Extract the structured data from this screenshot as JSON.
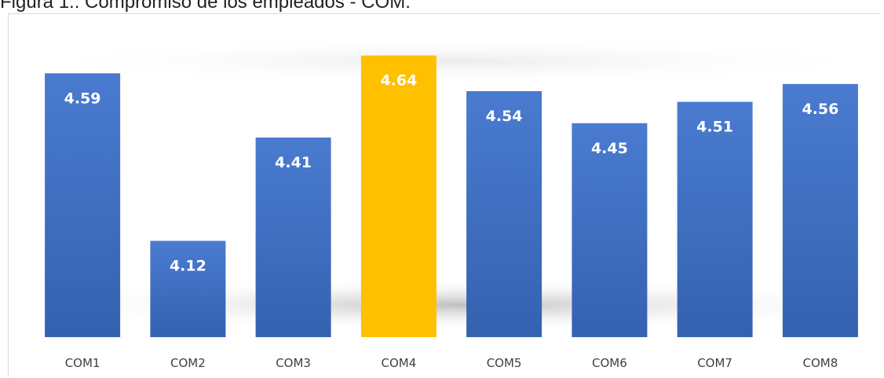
{
  "figure_title": "Figura 1.: Compromiso de los empleados - COM.",
  "chart_data": {
    "type": "bar",
    "title": "",
    "xlabel": "",
    "ylabel": "",
    "categories": [
      "COM1",
      "COM2",
      "COM3",
      "COM4",
      "COM5",
      "COM6",
      "COM7",
      "COM8"
    ],
    "values": [
      4.59,
      4.12,
      4.41,
      4.64,
      4.54,
      4.45,
      4.51,
      4.56
    ],
    "ylim": [
      3.85,
      4.67
    ],
    "grid": false,
    "legend": "none",
    "colors": {
      "default": "#4472c4",
      "highlight": "#ffc000",
      "data_label": "#ffffff"
    },
    "highlight_category": "COM4"
  }
}
